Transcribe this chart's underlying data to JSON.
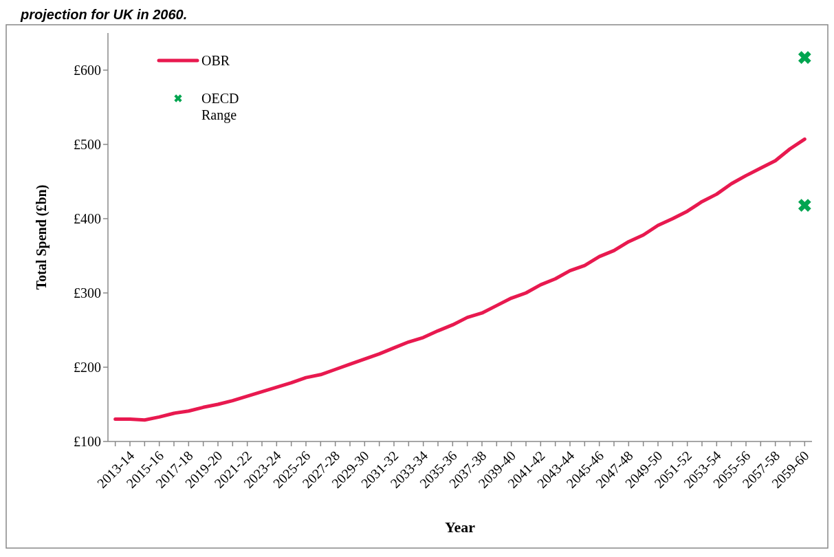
{
  "chart_data": {
    "type": "line",
    "title": "projection for UK in 2060.",
    "xlabel": "Year",
    "ylabel": "Total Spend (£bn)",
    "categories": [
      "2013-14",
      null,
      "2015-16",
      null,
      "2017-18",
      null,
      "2019-20",
      null,
      "2021-22",
      null,
      "2023-24",
      null,
      "2025-26",
      null,
      "2027-28",
      null,
      "2029-30",
      null,
      "2031-32",
      null,
      "2033-34",
      null,
      "2035-36",
      null,
      "2037-38",
      null,
      "2039-40",
      null,
      "2041-42",
      null,
      "2043-44",
      null,
      "2045-46",
      null,
      "2047-48",
      null,
      "2049-50",
      null,
      "2051-52",
      null,
      "2053-54",
      null,
      "2055-56",
      null,
      "2057-58",
      null,
      "2059-60",
      null
    ],
    "series": [
      {
        "name": "OBR",
        "color": "#e8194f",
        "marker": "none",
        "values": [
          130,
          130,
          129,
          133,
          138,
          141,
          146,
          150,
          155,
          161,
          167,
          173,
          179,
          186,
          190,
          197,
          204,
          211,
          218,
          226,
          234,
          240,
          249,
          257,
          267,
          273,
          283,
          293,
          300,
          311,
          319,
          330,
          337,
          349,
          357,
          369,
          378,
          391,
          400,
          410,
          423,
          433,
          447,
          458,
          468,
          478,
          494,
          507
        ]
      },
      {
        "name": "OECD Range",
        "type": "scatter",
        "color": "#00a550",
        "marker": "cross",
        "values": [
          null,
          null,
          null,
          null,
          null,
          null,
          null,
          null,
          null,
          null,
          null,
          null,
          null,
          null,
          null,
          null,
          null,
          null,
          null,
          null,
          null,
          null,
          null,
          null,
          null,
          null,
          null,
          null,
          null,
          null,
          null,
          null,
          null,
          null,
          null,
          null,
          null,
          null,
          null,
          null,
          null,
          null,
          null,
          null,
          null,
          null,
          null,
          617
        ]
      },
      {
        "type": "scatter",
        "color": "#00a550",
        "marker": "cross",
        "values": [
          null,
          null,
          null,
          null,
          null,
          null,
          null,
          null,
          null,
          null,
          null,
          null,
          null,
          null,
          null,
          null,
          null,
          null,
          null,
          null,
          null,
          null,
          null,
          null,
          null,
          null,
          null,
          null,
          null,
          null,
          null,
          null,
          null,
          null,
          null,
          null,
          null,
          null,
          null,
          null,
          null,
          null,
          null,
          null,
          null,
          null,
          null,
          418
        ]
      }
    ],
    "ylim": [
      100,
      650
    ],
    "yticks": [
      {
        "value": 100,
        "label": "£100"
      },
      {
        "value": 200,
        "label": "£200"
      },
      {
        "value": 300,
        "label": "£300"
      },
      {
        "value": 400,
        "label": "£400"
      },
      {
        "value": 500,
        "label": "£500"
      },
      {
        "value": 600,
        "label": "£600"
      }
    ],
    "grid": false,
    "legend": "top left"
  }
}
